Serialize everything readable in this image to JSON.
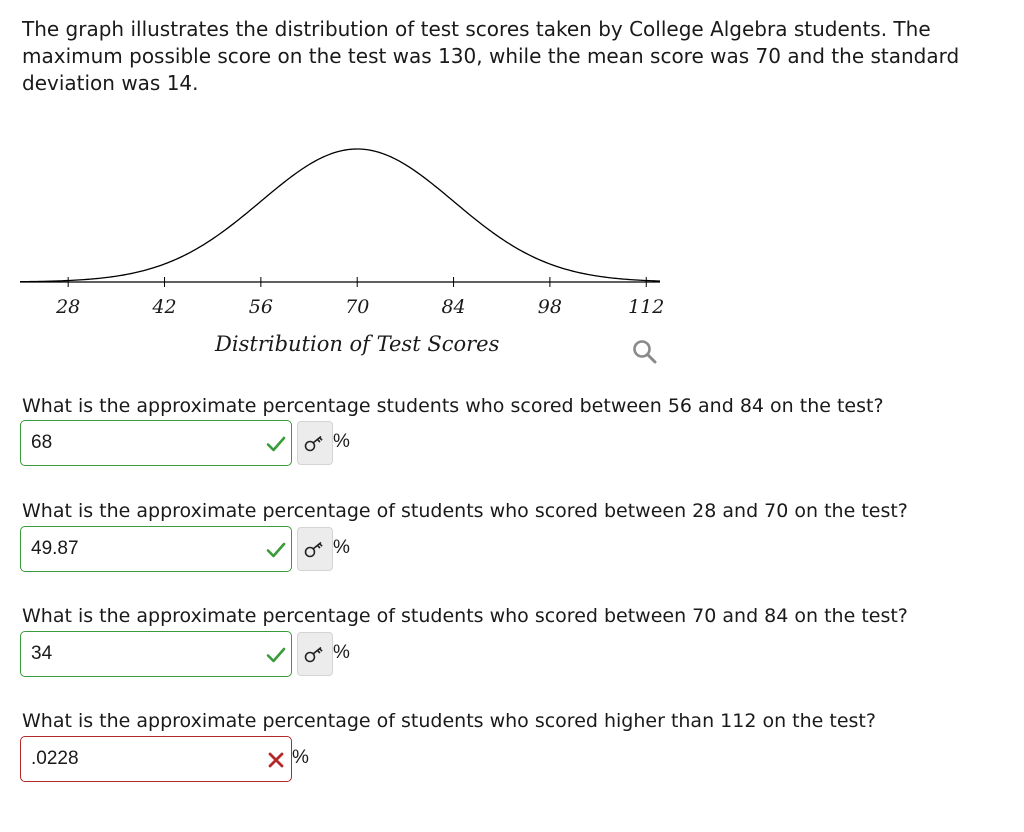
{
  "intro_text": "The graph illustrates the distribution of test scores taken by College Algebra students. The maximum possible score on the test was 130, while the mean score was 70 and the standard deviation was 14.",
  "chart_data": {
    "type": "line",
    "curve": "normal-distribution",
    "mean": 70,
    "std_dev": 14,
    "x_ticks": [
      28,
      42,
      56,
      70,
      84,
      98,
      112
    ],
    "x_tick_labels": [
      "28",
      "42",
      "56",
      "70",
      "84",
      "98",
      "112"
    ],
    "xlabel": "Distribution of Test Scores",
    "ylabel": "",
    "y_axis_visible": false,
    "grid": false,
    "line_color": "#000000"
  },
  "questions": [
    {
      "text": "What is the approximate percentage students who scored between 56 and 84 on the test?",
      "answer": "68",
      "status": "correct",
      "unit": "%",
      "has_key_button": true
    },
    {
      "text": "What is the approximate percentage of students who scored between 28 and 70 on the test?",
      "answer": "49.87",
      "status": "correct",
      "unit": "%",
      "has_key_button": true
    },
    {
      "text": "What is the approximate percentage of students who scored between 70 and 84 on the test?",
      "answer": "34",
      "status": "correct",
      "unit": "%",
      "has_key_button": true
    },
    {
      "text": "What is the approximate percentage of students who scored higher than 112 on the test?",
      "answer": ".0228",
      "status": "incorrect",
      "unit": "%",
      "has_key_button": false
    }
  ],
  "icons": {
    "magnifier": "magnifier-icon",
    "correct": "checkmark-icon",
    "incorrect": "x-mark-icon",
    "key": "key-icon"
  },
  "colors": {
    "correct": "#3a9b3a",
    "incorrect": "#b5282a",
    "curve": "#000000"
  }
}
